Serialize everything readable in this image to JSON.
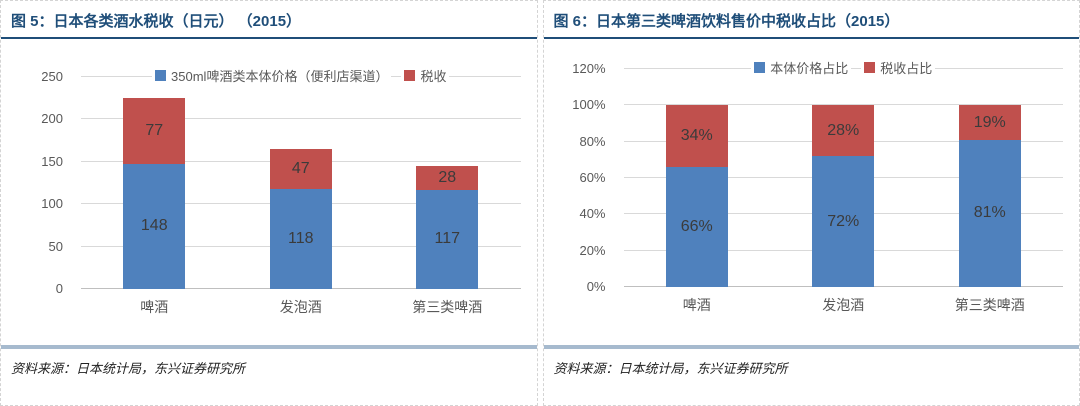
{
  "panels": [
    {
      "title": "图 5：日本各类酒水税收（日元） （2015）",
      "source": "资料来源：日本统计局，东兴证券研究所"
    },
    {
      "title": "图 6：日本第三类啤酒饮料售价中税收占比（2015）",
      "source": "资料来源：日本统计局，东兴证券研究所"
    }
  ],
  "colors": {
    "series_blue": "#4F81BD",
    "series_red": "#C0504D",
    "title_navy": "#1F4E79",
    "gridline": "#D9D9D9",
    "source_divider": "#A6BACE"
  },
  "chart_data": [
    {
      "type": "bar",
      "stacked": true,
      "title": "图 5：日本各类酒水税收（日元）（2015）",
      "categories": [
        "啤酒",
        "发泡酒",
        "第三类啤酒"
      ],
      "series": [
        {
          "name": "350ml啤酒类本体价格（便利店渠道）",
          "color": "#4F81BD",
          "values": [
            148,
            118,
            117
          ],
          "labels": [
            "148",
            "118",
            "117"
          ]
        },
        {
          "name": "税收",
          "color": "#C0504D",
          "values": [
            77,
            47,
            28
          ],
          "labels": [
            "77",
            "47",
            "28"
          ]
        }
      ],
      "xlabel": "",
      "ylabel": "",
      "ylim": [
        0,
        250
      ],
      "ytick_step": 50,
      "ytick_labels": [
        "0",
        "50",
        "100",
        "150",
        "200",
        "250"
      ],
      "grid": true,
      "legend_position": "top"
    },
    {
      "type": "bar",
      "stacked": true,
      "title": "图 6：日本第三类啤酒饮料售价中税收占比（2015）",
      "categories": [
        "啤酒",
        "发泡酒",
        "第三类啤酒"
      ],
      "series": [
        {
          "name": "本体价格占比",
          "color": "#4F81BD",
          "values": [
            66,
            72,
            81
          ],
          "labels": [
            "66%",
            "72%",
            "81%"
          ]
        },
        {
          "name": "税收占比",
          "color": "#C0504D",
          "values": [
            34,
            28,
            19
          ],
          "labels": [
            "34%",
            "28%",
            "19%"
          ]
        }
      ],
      "xlabel": "",
      "ylabel": "",
      "ylim": [
        0,
        120
      ],
      "ytick_step": 20,
      "ytick_labels": [
        "0%",
        "20%",
        "40%",
        "60%",
        "80%",
        "100%",
        "120%"
      ],
      "grid": true,
      "legend_position": "top"
    }
  ]
}
